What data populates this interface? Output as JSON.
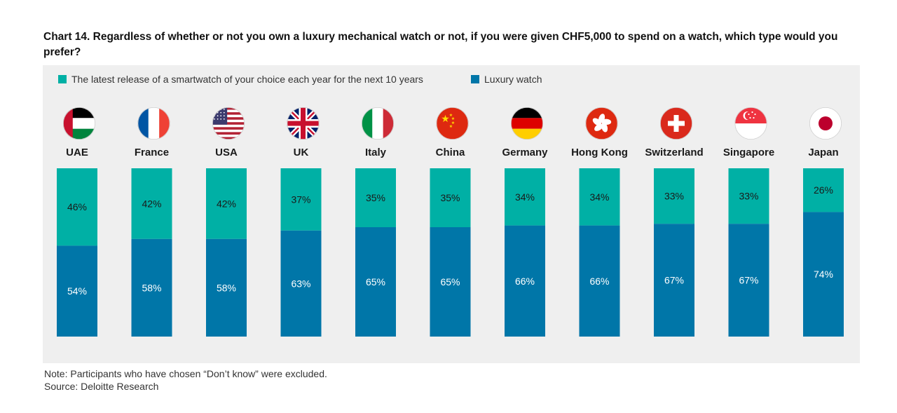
{
  "chart_data": {
    "type": "bar",
    "stacked": true,
    "title": "Chart 14. Regardless of whether or not you own a luxury mechanical watch or not, if you were given CHF5,000 to spend on a watch, which type would you prefer?",
    "categories": [
      "UAE",
      "France",
      "USA",
      "UK",
      "Italy",
      "China",
      "Germany",
      "Hong Kong",
      "Switzerland",
      "Singapore",
      "Japan"
    ],
    "series": [
      {
        "name": "The latest release of a smartwatch of your choice each year for the next 10 years",
        "color": "#00b0a5",
        "values": [
          46,
          42,
          42,
          37,
          35,
          35,
          34,
          34,
          33,
          33,
          26
        ],
        "labels": [
          "46%",
          "42%",
          "42%",
          "37%",
          "35%",
          "35%",
          "34%",
          "34%",
          "33%",
          "33%",
          "26%"
        ]
      },
      {
        "name": "Luxury watch",
        "color": "#0076a8",
        "values": [
          54,
          58,
          58,
          63,
          65,
          65,
          66,
          66,
          67,
          67,
          74
        ],
        "labels": [
          "54%",
          "58%",
          "58%",
          "63%",
          "65%",
          "65%",
          "66%",
          "66%",
          "67%",
          "67%",
          "74%"
        ]
      }
    ],
    "ylim": [
      0,
      100
    ],
    "xlabel": "",
    "ylabel": ""
  },
  "flags": [
    "uae-flag",
    "france-flag",
    "usa-flag",
    "uk-flag",
    "italy-flag",
    "china-flag",
    "germany-flag",
    "hong-kong-flag",
    "switzerland-flag",
    "singapore-flag",
    "japan-flag"
  ],
  "footer": {
    "note": "Note: Participants who have chosen “Don’t know” were excluded.",
    "source": "Source: Deloitte Research"
  }
}
